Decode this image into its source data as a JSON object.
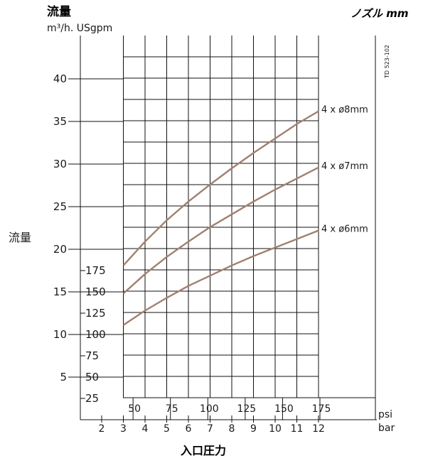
{
  "header": {
    "title": "流量",
    "units": "m³/h. USgpm",
    "nozzle_label": "ノズル mm",
    "side_label": "流量",
    "doc_code": "TD 523-102",
    "xlabel": "入口圧力",
    "psi_unit": "psi",
    "bar_unit": "bar"
  },
  "chart_data": {
    "type": "line",
    "title": "流量",
    "xlabel": "入口圧力",
    "ylabel": "流量",
    "x_unit": "bar",
    "y_unit": "m³/h",
    "xlim": [
      2,
      12
    ],
    "ylim": [
      0,
      44
    ],
    "x_ticks_bar": [
      "2",
      "3",
      "4",
      "5",
      "6",
      "7",
      "8",
      "9",
      "10",
      "11",
      "12"
    ],
    "x_ticks_psi": [
      "50",
      "75",
      "100",
      "125",
      "150",
      "175"
    ],
    "y_ticks_m3h": [
      "5",
      "10",
      "15",
      "20",
      "25",
      "30",
      "35",
      "40"
    ],
    "y_ticks_usgpm": [
      "25",
      "50",
      "75",
      "100",
      "125",
      "150",
      "175"
    ],
    "grid": true,
    "line_color": "#a08070",
    "series": [
      {
        "name": "4 x ø8mm",
        "x": [
          3,
          4,
          5,
          6,
          7,
          8,
          9,
          10,
          11,
          12
        ],
        "y": [
          18.1,
          20.9,
          23.4,
          25.6,
          27.6,
          29.5,
          31.3,
          33.0,
          34.7,
          36.2
        ]
      },
      {
        "name": "4 x ø7mm",
        "x": [
          3,
          4,
          5,
          6,
          7,
          8,
          9,
          10,
          11,
          12
        ],
        "y": [
          14.8,
          17.1,
          19.1,
          20.9,
          22.6,
          24.1,
          25.6,
          27.0,
          28.3,
          29.6
        ]
      },
      {
        "name": "4 x ø6mm",
        "x": [
          3,
          4,
          5,
          6,
          7,
          8,
          9,
          10,
          11,
          12
        ],
        "y": [
          11.1,
          12.8,
          14.3,
          15.7,
          16.9,
          18.1,
          19.2,
          20.2,
          21.2,
          22.2
        ]
      }
    ]
  }
}
